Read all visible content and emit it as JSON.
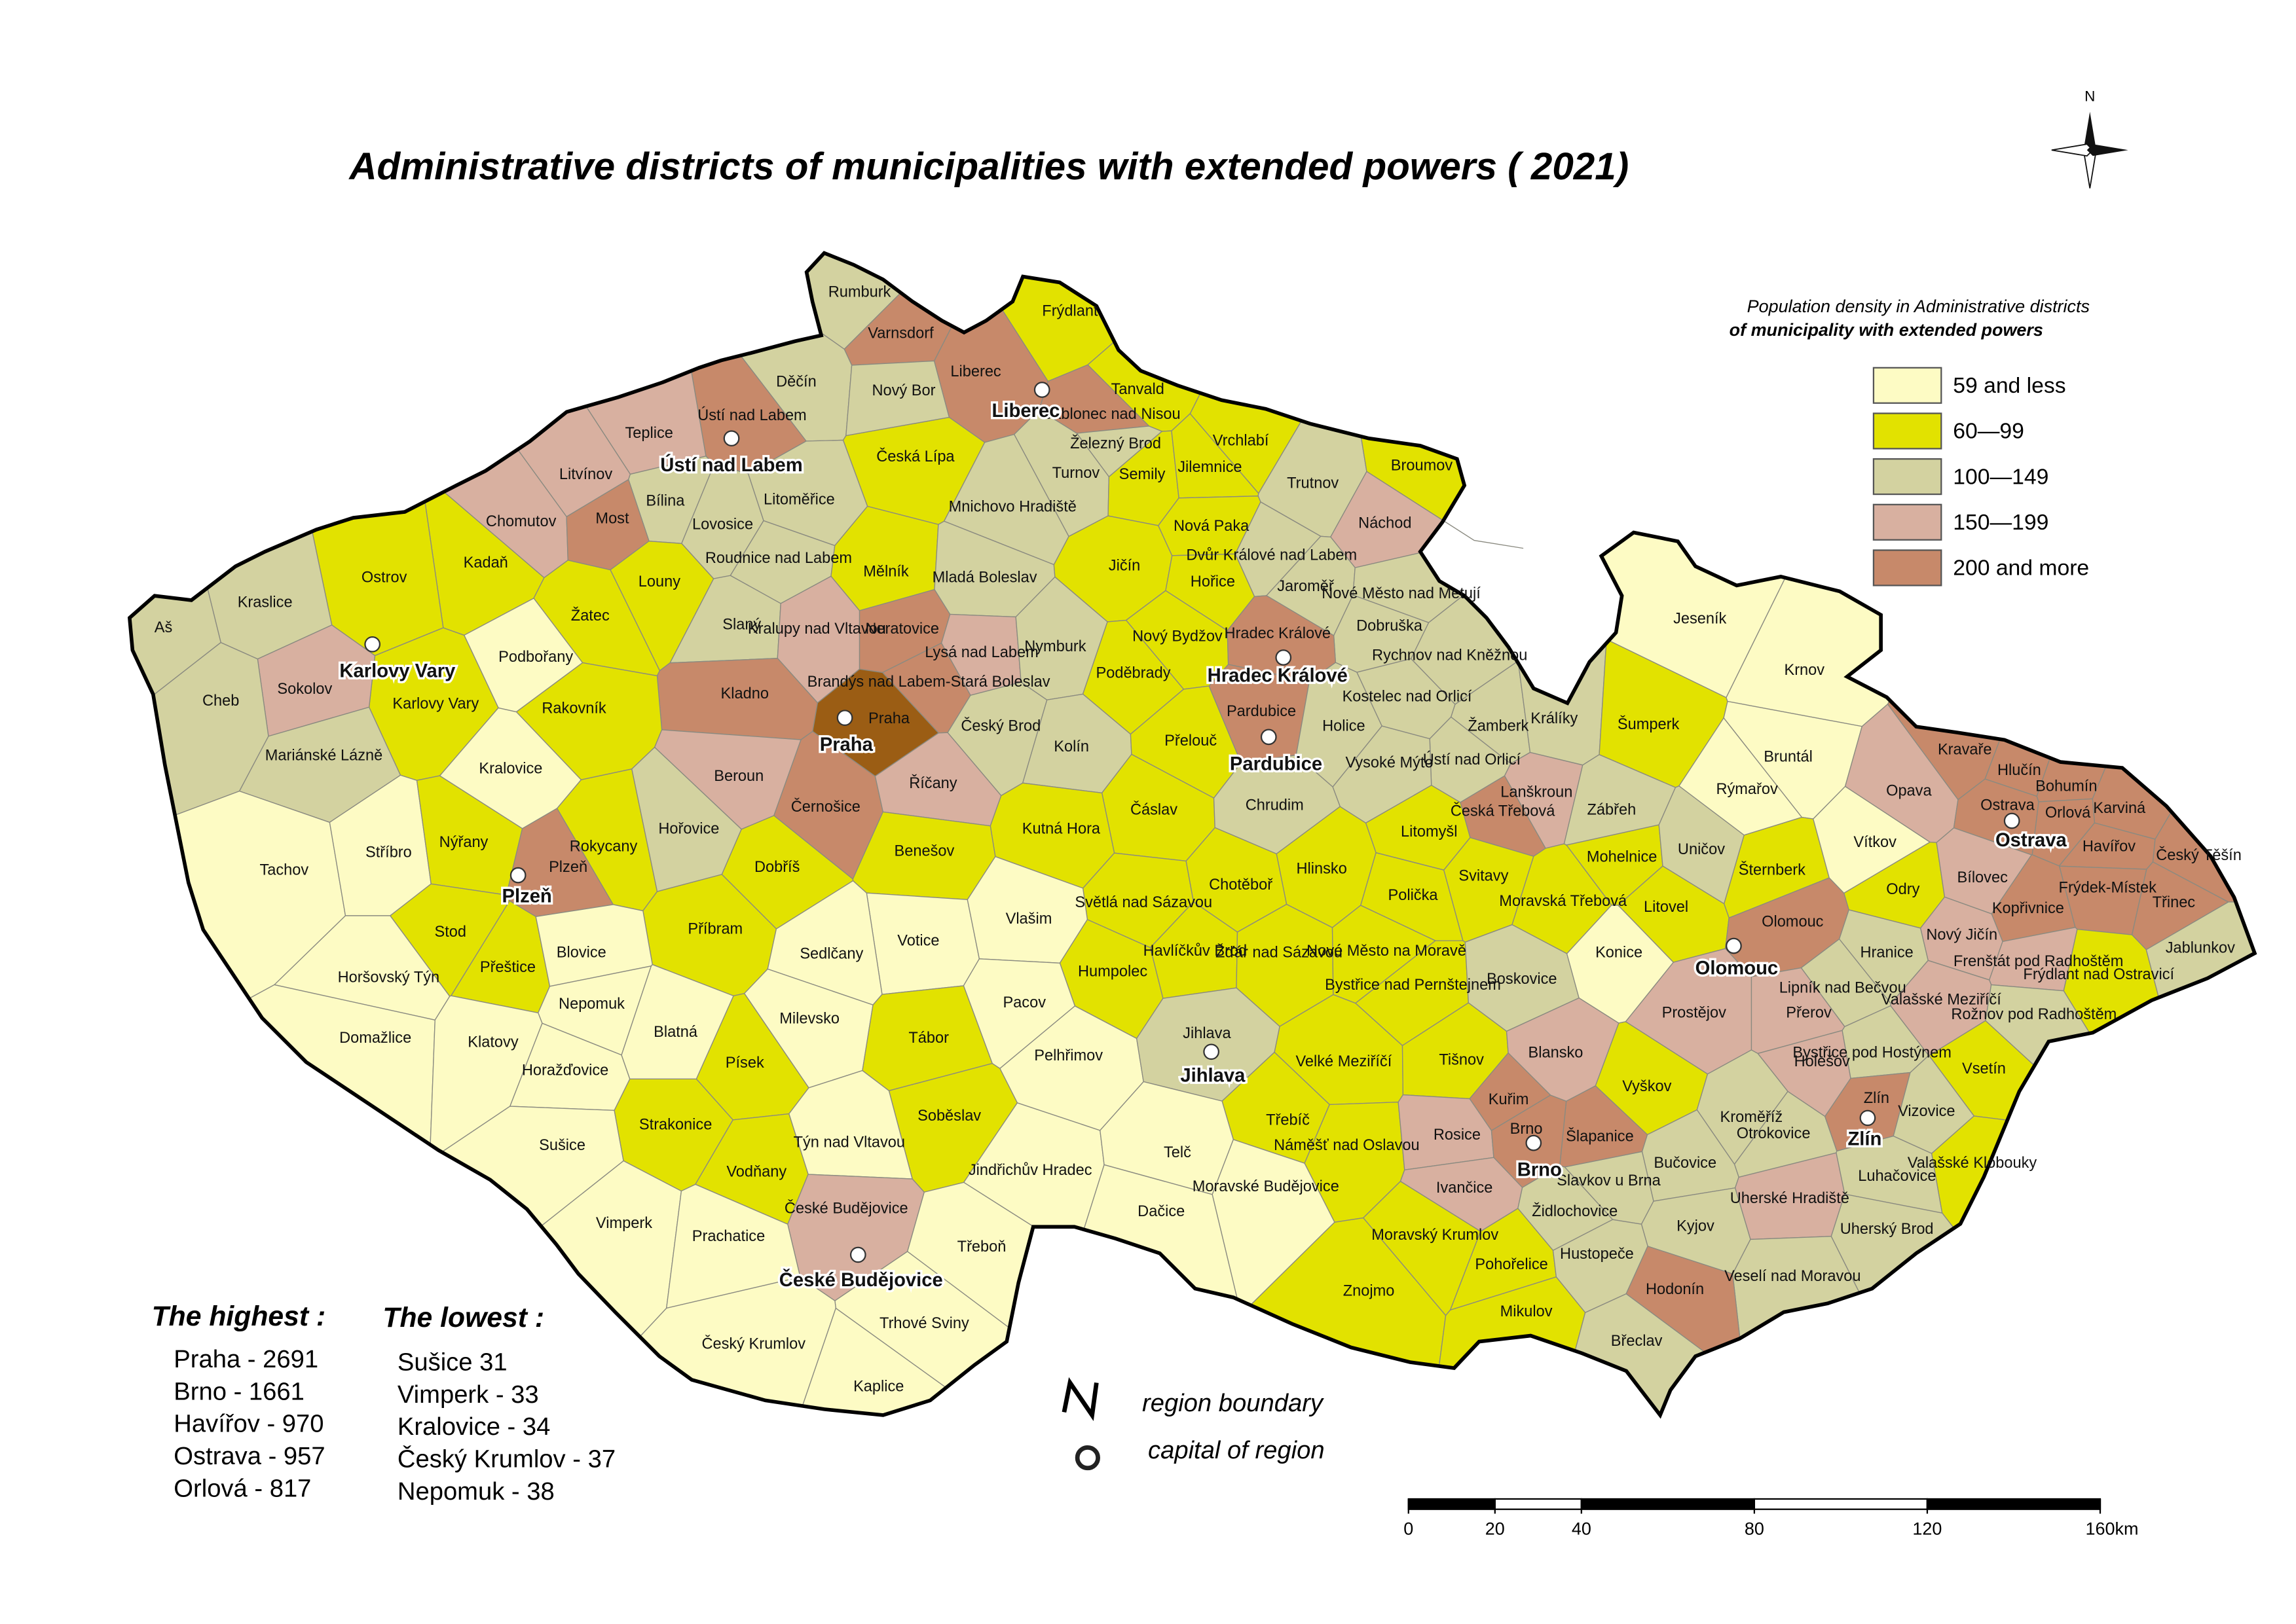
{
  "title": "Administrative districts of municipalities with extended powers ( 2021)",
  "compass": "N",
  "legend": {
    "title": "Population density in Administrative districts",
    "subtitle": "of municipality with extended powers",
    "items": [
      {
        "label": "59 and less",
        "color": "#fdfbc4"
      },
      {
        "label": "60—99",
        "color": "#e2e200"
      },
      {
        "label": "100—149",
        "color": "#d3d2a0"
      },
      {
        "label": "150—199",
        "color": "#d8b0a0"
      },
      {
        "label": "200 and more",
        "color": "#c7896a"
      }
    ]
  },
  "highest": {
    "title": "The highest :",
    "items": [
      "Praha - 2691",
      "Brno - 1661",
      "Havířov - 970",
      "Ostrava - 957",
      "Orlová - 817"
    ]
  },
  "lowest": {
    "title": "The lowest :",
    "items": [
      "Sušice  31",
      "Vimperk - 33",
      "Kralovice - 34",
      "Český Krumlov - 37",
      "Nepomuk - 38"
    ]
  },
  "symbols": {
    "boundary": "region boundary",
    "capital": "capital of region"
  },
  "scale_bar": {
    "ticks": [
      0,
      20,
      40,
      80,
      120,
      160
    ],
    "unit": "km"
  },
  "capitals": [
    "Praha",
    "Liberec",
    "Ústí nad Labem",
    "Karlovy Vary",
    "Hradec Králové",
    "Pardubice",
    "Plzeň",
    "Jihlava",
    "České Budějovice",
    "Brno",
    "Olomouc",
    "Ostrava",
    "Zlín"
  ],
  "districts": [
    {
      "name": "Rumburk",
      "color": "#d3d2a0"
    },
    {
      "name": "Varnsdorf",
      "color": "#c7896a"
    },
    {
      "name": "Děčín",
      "color": "#d3d2a0"
    },
    {
      "name": "Nový Bor",
      "color": "#d3d2a0"
    },
    {
      "name": "Liberec",
      "color": "#c7896a"
    },
    {
      "name": "Frýdlant",
      "color": "#e2e200"
    },
    {
      "name": "Tanvald",
      "color": "#e2e200"
    },
    {
      "name": "Jablonec nad Nisou",
      "color": "#c7896a"
    },
    {
      "name": "Železný Brod",
      "color": "#d3d2a0"
    },
    {
      "name": "Česká Lípa",
      "color": "#e2e200"
    },
    {
      "name": "Ústí nad Labem",
      "color": "#c7896a"
    },
    {
      "name": "Teplice",
      "color": "#d8b0a0"
    },
    {
      "name": "Litvínov",
      "color": "#d8b0a0"
    },
    {
      "name": "Bílina",
      "color": "#d3d2a0"
    },
    {
      "name": "Litoměřice",
      "color": "#d3d2a0"
    },
    {
      "name": "Chomutov",
      "color": "#d8b0a0"
    },
    {
      "name": "Most",
      "color": "#c7896a"
    },
    {
      "name": "Lovosice",
      "color": "#d3d2a0"
    },
    {
      "name": "Roudnice nad Labem",
      "color": "#d3d2a0"
    },
    {
      "name": "Turnov",
      "color": "#d3d2a0"
    },
    {
      "name": "Semily",
      "color": "#e2e200"
    },
    {
      "name": "Jilemnice",
      "color": "#e2e200"
    },
    {
      "name": "Vrchlabí",
      "color": "#e2e200"
    },
    {
      "name": "Trutnov",
      "color": "#d3d2a0"
    },
    {
      "name": "Broumov",
      "color": "#e2e200"
    },
    {
      "name": "Mnichovo Hradiště",
      "color": "#d3d2a0"
    },
    {
      "name": "Náchod",
      "color": "#d8b0a0"
    },
    {
      "name": "Kadaň",
      "color": "#e2e200"
    },
    {
      "name": "Ostrov",
      "color": "#e2e200"
    },
    {
      "name": "Louny",
      "color": "#e2e200"
    },
    {
      "name": "Žatec",
      "color": "#e2e200"
    },
    {
      "name": "Mělník",
      "color": "#e2e200"
    },
    {
      "name": "Mladá Boleslav",
      "color": "#d3d2a0"
    },
    {
      "name": "Jičín",
      "color": "#e2e200"
    },
    {
      "name": "Nová Paka",
      "color": "#e2e200"
    },
    {
      "name": "Dvůr Králové nad Labem",
      "color": "#d3d2a0"
    },
    {
      "name": "Hořice",
      "color": "#e2e200"
    },
    {
      "name": "Jaroměř",
      "color": "#d3d2a0"
    },
    {
      "name": "Nové Město nad Metují",
      "color": "#d3d2a0"
    },
    {
      "name": "Dobruška",
      "color": "#d3d2a0"
    },
    {
      "name": "Rychnov nad Kněžnou",
      "color": "#d3d2a0"
    },
    {
      "name": "Kraslice",
      "color": "#d3d2a0"
    },
    {
      "name": "Aš",
      "color": "#d3d2a0"
    },
    {
      "name": "Slaný",
      "color": "#d3d2a0"
    },
    {
      "name": "Kralupy nad Vltavou",
      "color": "#d8b0a0"
    },
    {
      "name": "Neratovice",
      "color": "#c7896a"
    },
    {
      "name": "Lysá nad Labem",
      "color": "#d8b0a0"
    },
    {
      "name": "Nymburk",
      "color": "#d3d2a0"
    },
    {
      "name": "Nový Bydžov",
      "color": "#e2e200"
    },
    {
      "name": "Hradec Králové",
      "color": "#c7896a"
    },
    {
      "name": "Podbořany",
      "color": "#fdfbc4"
    },
    {
      "name": "Karlovy Vary",
      "color": "#e2e200"
    },
    {
      "name": "Sokolov",
      "color": "#d8b0a0"
    },
    {
      "name": "Cheb",
      "color": "#d3d2a0"
    },
    {
      "name": "Kladno",
      "color": "#c7896a"
    },
    {
      "name": "Brandýs nad Labem-Stará Boleslav",
      "color": "#c7896a"
    },
    {
      "name": "Poděbrady",
      "color": "#e2e200"
    },
    {
      "name": "Praha",
      "color": "#9b5d14"
    },
    {
      "name": "Rakovník",
      "color": "#e2e200"
    },
    {
      "name": "Český Brod",
      "color": "#d3d2a0"
    },
    {
      "name": "Kolín",
      "color": "#d3d2a0"
    },
    {
      "name": "Přelouč",
      "color": "#e2e200"
    },
    {
      "name": "Pardubice",
      "color": "#c7896a"
    },
    {
      "name": "Holice",
      "color": "#d3d2a0"
    },
    {
      "name": "Kostelec nad Orlicí",
      "color": "#d3d2a0"
    },
    {
      "name": "Žamberk",
      "color": "#d3d2a0"
    },
    {
      "name": "Králíky",
      "color": "#d3d2a0"
    },
    {
      "name": "Ústí nad Orlicí",
      "color": "#d3d2a0"
    },
    {
      "name": "Vysoké Mýto",
      "color": "#d3d2a0"
    },
    {
      "name": "Mariánské Lázně",
      "color": "#d3d2a0"
    },
    {
      "name": "Kralovice",
      "color": "#fdfbc4"
    },
    {
      "name": "Beroun",
      "color": "#d8b0a0"
    },
    {
      "name": "Říčany",
      "color": "#d8b0a0"
    },
    {
      "name": "Černošice",
      "color": "#c7896a"
    },
    {
      "name": "Čáslav",
      "color": "#e2e200"
    },
    {
      "name": "Chrudim",
      "color": "#d3d2a0"
    },
    {
      "name": "Lanškroun",
      "color": "#d8b0a0"
    },
    {
      "name": "Česká Třebová",
      "color": "#c7896a"
    },
    {
      "name": "Litomyšl",
      "color": "#e2e200"
    },
    {
      "name": "Hořovice",
      "color": "#d3d2a0"
    },
    {
      "name": "Kutná Hora",
      "color": "#e2e200"
    },
    {
      "name": "Tachov",
      "color": "#fdfbc4"
    },
    {
      "name": "Stříbro",
      "color": "#fdfbc4"
    },
    {
      "name": "Nýřany",
      "color": "#e2e200"
    },
    {
      "name": "Plzeň",
      "color": "#c7896a"
    },
    {
      "name": "Rokycany",
      "color": "#e2e200"
    },
    {
      "name": "Dobříš",
      "color": "#e2e200"
    },
    {
      "name": "Benešov",
      "color": "#e2e200"
    },
    {
      "name": "Hlinsko",
      "color": "#e2e200"
    },
    {
      "name": "Polička",
      "color": "#e2e200"
    },
    {
      "name": "Svitavy",
      "color": "#e2e200"
    },
    {
      "name": "Moravská Třebová",
      "color": "#e2e200"
    },
    {
      "name": "Stod",
      "color": "#e2e200"
    },
    {
      "name": "Příbram",
      "color": "#e2e200"
    },
    {
      "name": "Světlá nad Sázavou",
      "color": "#e2e200"
    },
    {
      "name": "Chotěboř",
      "color": "#e2e200"
    },
    {
      "name": "Votice",
      "color": "#fdfbc4"
    },
    {
      "name": "Vlašim",
      "color": "#fdfbc4"
    },
    {
      "name": "Havlíčkův Brod",
      "color": "#e2e200"
    },
    {
      "name": "Žďár nad Sázavou",
      "color": "#e2e200"
    },
    {
      "name": "Nové Město na Moravě",
      "color": "#e2e200"
    },
    {
      "name": "Přeštice",
      "color": "#e2e200"
    },
    {
      "name": "Blovice",
      "color": "#fdfbc4"
    },
    {
      "name": "Horšovský Týn",
      "color": "#fdfbc4"
    },
    {
      "name": "Sedlčany",
      "color": "#fdfbc4"
    },
    {
      "name": "Humpolec",
      "color": "#e2e200"
    },
    {
      "name": "Bystřice nad Pernštejnem",
      "color": "#e2e200"
    },
    {
      "name": "Boskovice",
      "color": "#d3d2a0"
    },
    {
      "name": "Jeseník",
      "color": "#fdfbc4"
    },
    {
      "name": "Šumperk",
      "color": "#e2e200"
    },
    {
      "name": "Krnov",
      "color": "#fdfbc4"
    },
    {
      "name": "Bruntál",
      "color": "#fdfbc4"
    },
    {
      "name": "Rýmařov",
      "color": "#fdfbc4"
    },
    {
      "name": "Zábřeh",
      "color": "#d3d2a0"
    },
    {
      "name": "Mohelnice",
      "color": "#e2e200"
    },
    {
      "name": "Uničov",
      "color": "#d3d2a0"
    },
    {
      "name": "Šternberk",
      "color": "#e2e200"
    },
    {
      "name": "Litovel",
      "color": "#e2e200"
    },
    {
      "name": "Olomouc",
      "color": "#c7896a"
    },
    {
      "name": "Konice",
      "color": "#fdfbc4"
    },
    {
      "name": "Opava",
      "color": "#d8b0a0"
    },
    {
      "name": "Kravaře",
      "color": "#c7896a"
    },
    {
      "name": "Hlučín",
      "color": "#c7896a"
    },
    {
      "name": "Bohumín",
      "color": "#c7896a"
    },
    {
      "name": "Karviná",
      "color": "#c7896a"
    },
    {
      "name": "Orlová",
      "color": "#c7896a"
    },
    {
      "name": "Ostrava",
      "color": "#c7896a"
    },
    {
      "name": "Havířov",
      "color": "#c7896a"
    },
    {
      "name": "Český Těšín",
      "color": "#c7896a"
    },
    {
      "name": "Vítkov",
      "color": "#fdfbc4"
    },
    {
      "name": "Odry",
      "color": "#e2e200"
    },
    {
      "name": "Bílovec",
      "color": "#d8b0a0"
    },
    {
      "name": "Frýdek-Místek",
      "color": "#c7896a"
    },
    {
      "name": "Kopřivnice",
      "color": "#c7896a"
    },
    {
      "name": "Třinec",
      "color": "#c7896a"
    },
    {
      "name": "Nový Jičín",
      "color": "#d8b0a0"
    },
    {
      "name": "Frenštát pod Radhoštěm",
      "color": "#d8b0a0"
    },
    {
      "name": "Frýdlant nad Ostravicí",
      "color": "#e2e200"
    },
    {
      "name": "Jablunkov",
      "color": "#d3d2a0"
    },
    {
      "name": "Hranice",
      "color": "#d3d2a0"
    },
    {
      "name": "Lipník nad Bečvou",
      "color": "#d3d2a0"
    },
    {
      "name": "Přerov",
      "color": "#d8b0a0"
    },
    {
      "name": "Prostějov",
      "color": "#d8b0a0"
    },
    {
      "name": "Valašské Meziříčí",
      "color": "#d8b0a0"
    },
    {
      "name": "Rožnov pod Radhoštěm",
      "color": "#d3d2a0"
    },
    {
      "name": "Nepomuk",
      "color": "#fdfbc4"
    },
    {
      "name": "Domažlice",
      "color": "#fdfbc4"
    },
    {
      "name": "Klatovy",
      "color": "#fdfbc4"
    },
    {
      "name": "Horažďovice",
      "color": "#fdfbc4"
    },
    {
      "name": "Sušice",
      "color": "#fdfbc4"
    },
    {
      "name": "Blatná",
      "color": "#fdfbc4"
    },
    {
      "name": "Milevsko",
      "color": "#fdfbc4"
    },
    {
      "name": "Pacov",
      "color": "#fdfbc4"
    },
    {
      "name": "Tábor",
      "color": "#e2e200"
    },
    {
      "name": "Pelhřimov",
      "color": "#fdfbc4"
    },
    {
      "name": "Jihlava",
      "color": "#d3d2a0"
    },
    {
      "name": "Velké Meziříčí",
      "color": "#e2e200"
    },
    {
      "name": "Písek",
      "color": "#e2e200"
    },
    {
      "name": "Tišnov",
      "color": "#e2e200"
    },
    {
      "name": "Blansko",
      "color": "#d8b0a0"
    },
    {
      "name": "Vyškov",
      "color": "#e2e200"
    },
    {
      "name": "Holešov",
      "color": "#d8b0a0"
    },
    {
      "name": "Bystřice pod Hostýnem",
      "color": "#d3d2a0"
    },
    {
      "name": "Vsetín",
      "color": "#e2e200"
    },
    {
      "name": "Kroměříž",
      "color": "#d3d2a0"
    },
    {
      "name": "Otrokovice",
      "color": "#d3d2a0"
    },
    {
      "name": "Zlín",
      "color": "#c7896a"
    },
    {
      "name": "Vizovice",
      "color": "#d3d2a0"
    },
    {
      "name": "Strakonice",
      "color": "#e2e200"
    },
    {
      "name": "Soběslav",
      "color": "#e2e200"
    },
    {
      "name": "Týn nad Vltavou",
      "color": "#fdfbc4"
    },
    {
      "name": "Třebíč",
      "color": "#e2e200"
    },
    {
      "name": "Náměšť nad Oslavou",
      "color": "#e2e200"
    },
    {
      "name": "Kuřim",
      "color": "#c7896a"
    },
    {
      "name": "Šlapanice",
      "color": "#c7896a"
    },
    {
      "name": "Rosice",
      "color": "#d8b0a0"
    },
    {
      "name": "Brno",
      "color": "#c7896a"
    },
    {
      "name": "Bučovice",
      "color": "#d3d2a0"
    },
    {
      "name": "Slavkov u Brna",
      "color": "#d3d2a0"
    },
    {
      "name": "Luhačovice",
      "color": "#d3d2a0"
    },
    {
      "name": "Valašské Klobouky",
      "color": "#e2e200"
    },
    {
      "name": "Vodňany",
      "color": "#e2e200"
    },
    {
      "name": "Jindřichův Hradec",
      "color": "#fdfbc4"
    },
    {
      "name": "Telč",
      "color": "#fdfbc4"
    },
    {
      "name": "Moravské Budějovice",
      "color": "#fdfbc4"
    },
    {
      "name": "Dačice",
      "color": "#fdfbc4"
    },
    {
      "name": "Ivančice",
      "color": "#d8b0a0"
    },
    {
      "name": "Židlochovice",
      "color": "#d3d2a0"
    },
    {
      "name": "Uherské Hradiště",
      "color": "#d8b0a0"
    },
    {
      "name": "Uherský Brod",
      "color": "#d3d2a0"
    },
    {
      "name": "České Budějovice",
      "color": "#d8b0a0"
    },
    {
      "name": "Vimperk",
      "color": "#fdfbc4"
    },
    {
      "name": "Prachatice",
      "color": "#fdfbc4"
    },
    {
      "name": "Třeboň",
      "color": "#fdfbc4"
    },
    {
      "name": "Moravský Krumlov",
      "color": "#e2e200"
    },
    {
      "name": "Kyjov",
      "color": "#d3d2a0"
    },
    {
      "name": "Pohořelice",
      "color": "#e2e200"
    },
    {
      "name": "Hustopeče",
      "color": "#d3d2a0"
    },
    {
      "name": "Veselí nad Moravou",
      "color": "#d3d2a0"
    },
    {
      "name": "Hodonín",
      "color": "#c7896a"
    },
    {
      "name": "Trhové Sviny",
      "color": "#fdfbc4"
    },
    {
      "name": "Znojmo",
      "color": "#e2e200"
    },
    {
      "name": "Mikulov",
      "color": "#e2e200"
    },
    {
      "name": "Český Krumlov",
      "color": "#fdfbc4"
    },
    {
      "name": "Břeclav",
      "color": "#d3d2a0"
    },
    {
      "name": "Kaplice",
      "color": "#fdfbc4"
    }
  ]
}
